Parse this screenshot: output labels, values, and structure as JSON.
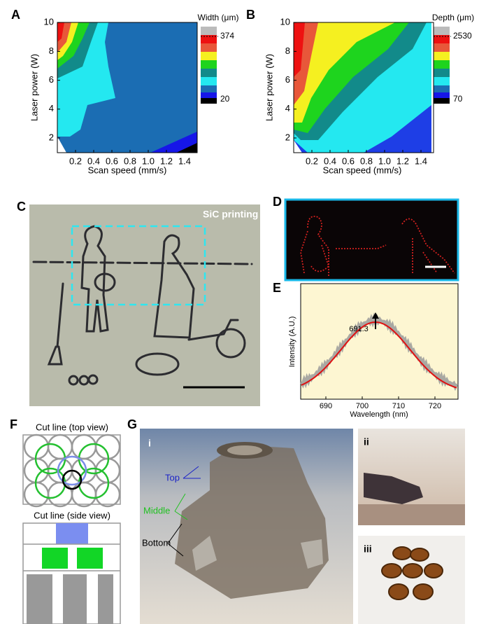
{
  "panels": {
    "A": {
      "label": "A",
      "colorbar_title": "Width (μm)",
      "colorbar_max": "374",
      "colorbar_min": "20",
      "ylabel": "Laser power (W)",
      "xlabel": "Scan speed (mm/s)",
      "yticks": [
        "2",
        "4",
        "6",
        "8",
        "10"
      ],
      "xticks": [
        "0.2",
        "0.4",
        "0.6",
        "0.8",
        "1.0",
        "1.2",
        "1.4"
      ]
    },
    "B": {
      "label": "B",
      "colorbar_title": "Depth (μm)",
      "colorbar_max": "2530",
      "colorbar_min": "70",
      "ylabel": "Laser power (W)",
      "xlabel": "Scan speed (mm/s)",
      "yticks": [
        "2",
        "4",
        "6",
        "8",
        "10"
      ],
      "xticks": [
        "0.2",
        "0.4",
        "0.6",
        "0.8",
        "1.0",
        "1.2",
        "1.4"
      ]
    },
    "C": {
      "label": "C",
      "caption": "SiC printing"
    },
    "D": {
      "label": "D"
    },
    "E": {
      "label": "E",
      "ylabel": "Intensity (A.U.)",
      "xlabel": "Wavelength (nm)",
      "xticks": [
        "690",
        "700",
        "710",
        "720"
      ],
      "peak_label": "691.3"
    },
    "F": {
      "label": "F",
      "top_title": "Cut line (top view)",
      "side_title": "Cut line (side view)"
    },
    "G": {
      "label": "G",
      "sub_i": "i",
      "sub_ii": "ii",
      "sub_iii": "iii",
      "top": "Top",
      "middle": "Middle",
      "bottom": "Bottom"
    }
  }
}
